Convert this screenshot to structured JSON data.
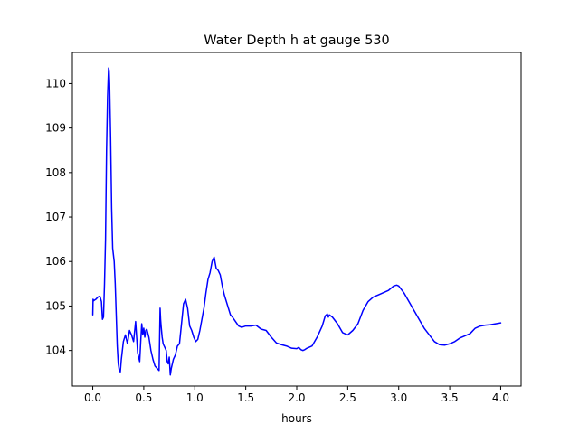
{
  "chart_data": {
    "type": "line",
    "title": "Water Depth h at gauge 530",
    "xlabel": "hours",
    "ylabel": "",
    "xlim": [
      -0.2,
      4.2
    ],
    "ylim": [
      103.2,
      110.7
    ],
    "xticks": [
      0.0,
      0.5,
      1.0,
      1.5,
      2.0,
      2.5,
      3.0,
      3.5,
      4.0
    ],
    "xtick_labels": [
      "0.0",
      "0.5",
      "1.0",
      "1.5",
      "2.0",
      "2.5",
      "3.0",
      "3.5",
      "4.0"
    ],
    "yticks": [
      104,
      105,
      106,
      107,
      108,
      109,
      110
    ],
    "ytick_labels": [
      "104",
      "105",
      "106",
      "107",
      "108",
      "109",
      "110"
    ],
    "grid": false,
    "series": [
      {
        "color": "#0000ff",
        "x": [
          0.0,
          0.003,
          0.01,
          0.03,
          0.05,
          0.07,
          0.085,
          0.095,
          0.105,
          0.115,
          0.125,
          0.135,
          0.145,
          0.155,
          0.16,
          0.165,
          0.175,
          0.185,
          0.195,
          0.21,
          0.22,
          0.23,
          0.24,
          0.25,
          0.26,
          0.27,
          0.28,
          0.3,
          0.32,
          0.34,
          0.36,
          0.38,
          0.4,
          0.42,
          0.43,
          0.44,
          0.45,
          0.46,
          0.47,
          0.48,
          0.49,
          0.5,
          0.51,
          0.52,
          0.53,
          0.55,
          0.57,
          0.59,
          0.61,
          0.63,
          0.65,
          0.66,
          0.665,
          0.67,
          0.68,
          0.69,
          0.7,
          0.71,
          0.72,
          0.73,
          0.74,
          0.75,
          0.76,
          0.77,
          0.78,
          0.79,
          0.81,
          0.83,
          0.85,
          0.87,
          0.89,
          0.91,
          0.92,
          0.93,
          0.95,
          0.97,
          0.99,
          1.01,
          1.03,
          1.05,
          1.07,
          1.09,
          1.11,
          1.13,
          1.15,
          1.17,
          1.19,
          1.21,
          1.23,
          1.24,
          1.25,
          1.27,
          1.29,
          1.31,
          1.33,
          1.35,
          1.37,
          1.4,
          1.43,
          1.46,
          1.5,
          1.55,
          1.6,
          1.65,
          1.7,
          1.75,
          1.8,
          1.85,
          1.9,
          1.95,
          2.0,
          2.02,
          2.04,
          2.06,
          2.08,
          2.1,
          2.15,
          2.2,
          2.25,
          2.28,
          2.3,
          2.31,
          2.32,
          2.35,
          2.4,
          2.45,
          2.5,
          2.55,
          2.6,
          2.65,
          2.7,
          2.75,
          2.8,
          2.85,
          2.9,
          2.95,
          2.98,
          3.0,
          3.05,
          3.1,
          3.15,
          3.2,
          3.25,
          3.3,
          3.35,
          3.4,
          3.45,
          3.5,
          3.55,
          3.6,
          3.65,
          3.7,
          3.75,
          3.8,
          3.85,
          3.9,
          3.95,
          4.0
        ],
        "y": [
          104.8,
          105.15,
          105.12,
          105.15,
          105.2,
          105.22,
          105.1,
          104.7,
          104.75,
          105.5,
          106.5,
          108.5,
          109.7,
          110.35,
          110.3,
          110.0,
          108.8,
          107.2,
          106.3,
          106.0,
          105.5,
          104.8,
          104.1,
          103.7,
          103.55,
          103.52,
          103.8,
          104.2,
          104.35,
          104.15,
          104.45,
          104.35,
          104.2,
          104.65,
          104.3,
          103.95,
          103.85,
          103.75,
          104.2,
          104.6,
          104.35,
          104.5,
          104.3,
          104.45,
          104.48,
          104.3,
          104.0,
          103.8,
          103.65,
          103.6,
          103.55,
          104.95,
          104.7,
          104.55,
          104.3,
          104.15,
          104.1,
          104.05,
          104.0,
          103.75,
          103.7,
          103.85,
          103.45,
          103.6,
          103.7,
          103.8,
          103.9,
          104.1,
          104.15,
          104.6,
          105.05,
          105.15,
          105.05,
          104.95,
          104.55,
          104.45,
          104.3,
          104.2,
          104.25,
          104.45,
          104.7,
          104.95,
          105.3,
          105.6,
          105.75,
          106.0,
          106.1,
          105.85,
          105.8,
          105.75,
          105.7,
          105.45,
          105.25,
          105.1,
          104.95,
          104.8,
          104.75,
          104.65,
          104.55,
          104.52,
          104.55,
          104.55,
          104.57,
          104.48,
          104.45,
          104.3,
          104.17,
          104.13,
          104.1,
          104.05,
          104.04,
          104.07,
          104.02,
          104.0,
          104.02,
          104.05,
          104.1,
          104.3,
          104.55,
          104.78,
          104.82,
          104.75,
          104.8,
          104.75,
          104.6,
          104.4,
          104.35,
          104.45,
          104.6,
          104.9,
          105.1,
          105.2,
          105.25,
          105.3,
          105.35,
          105.45,
          105.47,
          105.45,
          105.3,
          105.1,
          104.9,
          104.7,
          104.5,
          104.35,
          104.2,
          104.13,
          104.12,
          104.15,
          104.2,
          104.28,
          104.33,
          104.38,
          104.5,
          104.55,
          104.57,
          104.58,
          104.6,
          104.62
        ]
      }
    ]
  }
}
